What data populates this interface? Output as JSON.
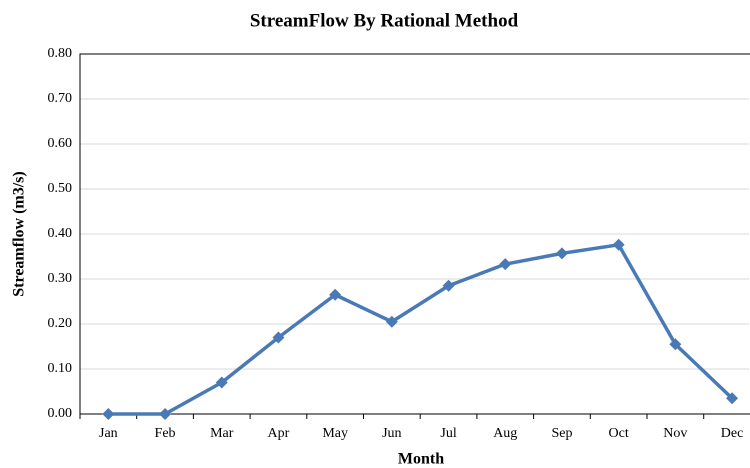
{
  "chart_data": {
    "type": "line",
    "title": "StreamFlow  By Rational Method",
    "x_label": "Month",
    "y_label": "Streamflow (m3/s)",
    "categories": [
      "Jan",
      "Feb",
      "Mar",
      "Apr",
      "May",
      "Jun",
      "Jul",
      "Aug",
      "Sep",
      "Oct",
      "Nov",
      "Dec"
    ],
    "series": [
      {
        "name": "Streamflow",
        "color": "#4a7ab5",
        "values": [
          0,
          0,
          0.07,
          0.17,
          0.265,
          0.205,
          0.285,
          0.333,
          0.357,
          0.376,
          0.155,
          0.035
        ]
      }
    ],
    "ylim": [
      0,
      0.8
    ],
    "yticks": [
      {
        "value": 0,
        "label": "0.00"
      },
      {
        "value": 0.1,
        "label": "0.10"
      },
      {
        "value": 0.2,
        "label": "0.20"
      },
      {
        "value": 0.3,
        "label": "0.30"
      },
      {
        "value": 0.4,
        "label": "0.40"
      },
      {
        "value": 0.5,
        "label": "0.50"
      },
      {
        "value": 0.6,
        "label": "0.60"
      },
      {
        "value": 0.7,
        "label": "0.70"
      },
      {
        "value": 0.8,
        "label": "0.80"
      }
    ],
    "grid": true
  }
}
